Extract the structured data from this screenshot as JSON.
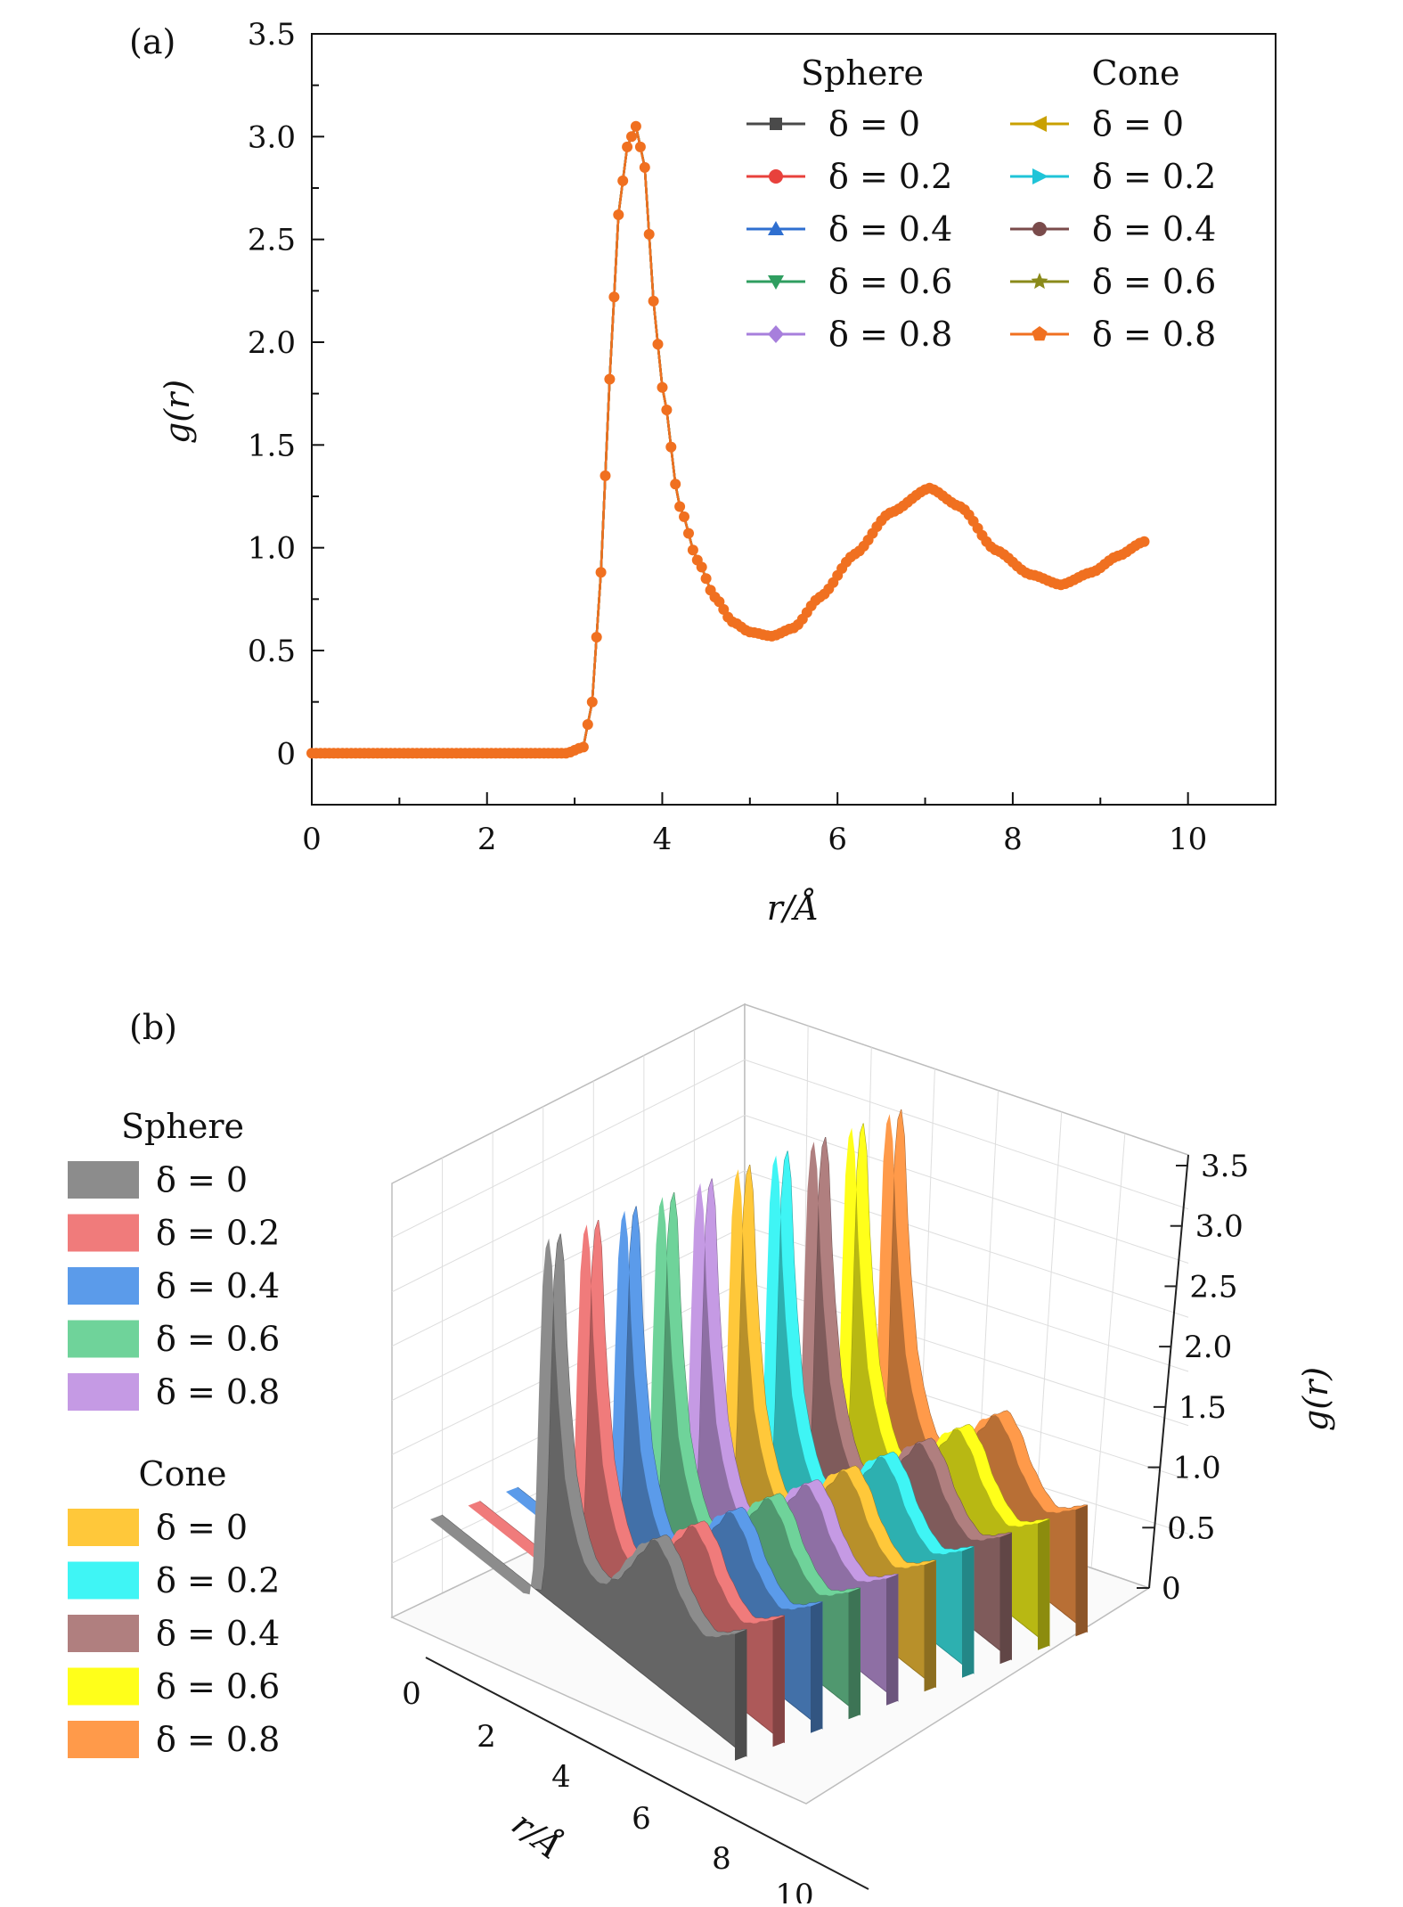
{
  "chart_data": [
    {
      "panel": "(a)",
      "type": "line",
      "xlabel": "r/Å",
      "ylabel": "g(r)",
      "xlim": [
        0,
        11
      ],
      "ylim": [
        -0.25,
        3.5
      ],
      "xticks": [
        "0",
        "2",
        "4",
        "6",
        "8",
        "10"
      ],
      "yticks": [
        "0",
        "0.5",
        "1.0",
        "1.5",
        "2.0",
        "2.5",
        "3.0",
        "3.5"
      ],
      "ytick_values": [
        0,
        0.5,
        1.0,
        1.5,
        2.0,
        2.5,
        3.0,
        3.5
      ],
      "xtick_values": [
        0,
        2,
        4,
        6,
        8,
        10
      ],
      "legend": {
        "groups": [
          {
            "title": "Sphere",
            "entries": [
              {
                "label": "δ = 0",
                "color": "#4a4a4a",
                "marker": "square"
              },
              {
                "label": "δ = 0.2",
                "color": "#e8413c",
                "marker": "circle"
              },
              {
                "label": "δ = 0.4",
                "color": "#2f6fd0",
                "marker": "triangle-up"
              },
              {
                "label": "δ = 0.6",
                "color": "#2f9e60",
                "marker": "triangle-down"
              },
              {
                "label": "δ = 0.8",
                "color": "#a77fdc",
                "marker": "diamond"
              }
            ]
          },
          {
            "title": "Cone",
            "entries": [
              {
                "label": "δ = 0",
                "color": "#c9a000",
                "marker": "triangle-left"
              },
              {
                "label": "δ = 0.2",
                "color": "#1fc4d8",
                "marker": "triangle-right"
              },
              {
                "label": "δ = 0.4",
                "color": "#7a4b4b",
                "marker": "circle"
              },
              {
                "label": "δ = 0.6",
                "color": "#8a8a1a",
                "marker": "star"
              },
              {
                "label": "δ = 0.8",
                "color": "#f07020",
                "marker": "pentagon"
              }
            ]
          }
        ]
      },
      "series_note": "All ten series overlap; the top visible series is Cone δ = 0.8",
      "x": [
        0,
        0.5,
        1.0,
        1.5,
        2.0,
        2.5,
        2.9,
        3.1,
        3.2,
        3.3,
        3.4,
        3.5,
        3.6,
        3.7,
        3.8,
        3.9,
        4.0,
        4.2,
        4.4,
        4.6,
        4.8,
        5.0,
        5.25,
        5.5,
        5.8,
        6.2,
        6.6,
        7.05,
        7.4,
        7.8,
        8.2,
        8.55,
        8.9,
        9.2,
        9.5
      ],
      "values": [
        0,
        0,
        0,
        0,
        0,
        0,
        0,
        0.03,
        0.25,
        0.88,
        1.82,
        2.62,
        2.95,
        3.05,
        2.85,
        2.2,
        1.78,
        1.2,
        0.94,
        0.76,
        0.64,
        0.59,
        0.57,
        0.61,
        0.76,
        0.97,
        1.17,
        1.29,
        1.2,
        0.99,
        0.87,
        0.82,
        0.88,
        0.96,
        1.03
      ]
    },
    {
      "panel": "(b)",
      "type": "area",
      "projection": "3d-waterfall",
      "xlabel": "r/Å",
      "zlabel": "g(r)",
      "xticks": [
        "0",
        "2",
        "4",
        "6",
        "8",
        "10"
      ],
      "zticks": [
        "0",
        "0.5",
        "1.0",
        "1.5",
        "2.0",
        "2.5",
        "3.0",
        "3.5"
      ],
      "legend": {
        "groups": [
          {
            "title": "Sphere",
            "entries": [
              {
                "label": "δ = 0",
                "color": "#8c8c8c"
              },
              {
                "label": "δ = 0.2",
                "color": "#f07b7b"
              },
              {
                "label": "δ = 0.4",
                "color": "#5b9bea"
              },
              {
                "label": "δ = 0.6",
                "color": "#6fd39a"
              },
              {
                "label": "δ = 0.8",
                "color": "#c59ae4"
              }
            ]
          },
          {
            "title": "Cone",
            "entries": [
              {
                "label": "δ = 0",
                "color": "#ffc83a"
              },
              {
                "label": "δ = 0.2",
                "color": "#3ff5f5"
              },
              {
                "label": "δ = 0.4",
                "color": "#b07f7f"
              },
              {
                "label": "δ = 0.6",
                "color": "#ffff1a"
              },
              {
                "label": "δ = 0.8",
                "color": "#ff9a4a"
              }
            ]
          }
        ]
      },
      "series_order": [
        "Sphere δ = 0",
        "Sphere δ = 0.2",
        "Sphere δ = 0.4",
        "Sphere δ = 0.6",
        "Sphere δ = 0.8",
        "Cone δ = 0",
        "Cone δ = 0.2",
        "Cone δ = 0.4",
        "Cone δ = 0.6",
        "Cone δ = 0.8"
      ],
      "x": [
        0,
        0.5,
        1.0,
        1.5,
        2.0,
        2.5,
        2.9,
        3.1,
        3.2,
        3.3,
        3.4,
        3.5,
        3.6,
        3.7,
        3.8,
        3.9,
        4.0,
        4.2,
        4.4,
        4.6,
        4.8,
        5.0,
        5.25,
        5.5,
        5.8,
        6.2,
        6.6,
        7.05,
        7.4,
        7.8,
        8.2,
        8.55,
        8.9,
        9.2,
        9.5
      ],
      "values": [
        0,
        0,
        0,
        0,
        0,
        0,
        0,
        0.03,
        0.25,
        0.88,
        1.82,
        2.62,
        2.95,
        3.05,
        2.85,
        2.2,
        1.78,
        1.2,
        0.94,
        0.76,
        0.64,
        0.59,
        0.57,
        0.61,
        0.76,
        0.97,
        1.17,
        1.29,
        1.2,
        0.99,
        0.87,
        0.82,
        0.88,
        0.96,
        1.03
      ]
    }
  ]
}
